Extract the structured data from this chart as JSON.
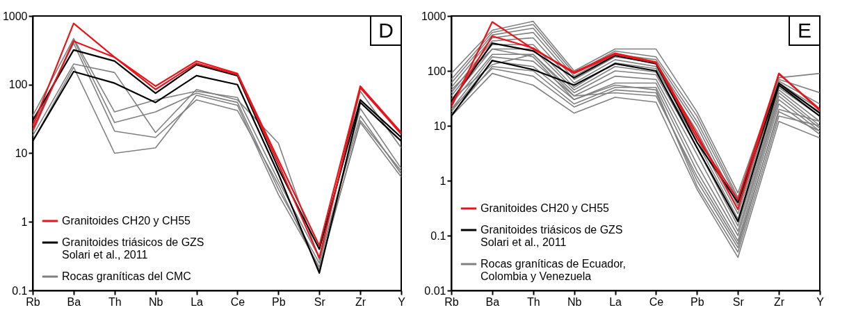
{
  "chart_data": [
    {
      "type": "line",
      "categories": [
        "Rb",
        "Ba",
        "Th",
        "Nb",
        "La",
        "Ce",
        "Pb",
        "Sr",
        "Zr",
        "Y"
      ],
      "log": "y",
      "ylim": [
        0.1,
        1000
      ],
      "yticks": [
        0.1,
        1,
        10,
        100,
        1000
      ],
      "grid": false,
      "legend": "bottom left",
      "annotations": [
        "D"
      ],
      "series": [
        {
          "name": "Granitoides CH20 y CH55",
          "color": "#e8141b",
          "values": [
            25,
            780,
            250,
            95,
            220,
            145,
            8,
            0.45,
            95,
            20
          ]
        },
        {
          "color": "#e8141b",
          "values": [
            22,
            430,
            250,
            85,
            205,
            140,
            7,
            0.3,
            90,
            19
          ]
        },
        {
          "name": "Granitoides triásicos de GZS\nSolari et al., 2011",
          "color": "#000000",
          "values": [
            30,
            320,
            220,
            75,
            195,
            135,
            6,
            0.4,
            60,
            17
          ]
        },
        {
          "color": "#000000",
          "values": [
            15,
            155,
            105,
            55,
            135,
            100,
            5,
            0.18,
            55,
            15
          ]
        },
        {
          "name": "Rocas graníticas del CMC",
          "color": "#808080",
          "values": [
            35,
            470,
            40,
            60,
            80,
            65,
            4,
            0.3,
            80,
            12
          ]
        },
        {
          "color": "#808080",
          "values": [
            20,
            450,
            28,
            40,
            75,
            55,
            3,
            0.25,
            45,
            6
          ]
        },
        {
          "color": "#808080",
          "values": [
            18,
            200,
            150,
            20,
            85,
            60,
            14,
            0.28,
            35,
            5
          ]
        },
        {
          "color": "#808080",
          "values": [
            15,
            180,
            10,
            12,
            70,
            50,
            2.5,
            0.22,
            28,
            4.5
          ]
        },
        {
          "color": "#808080",
          "values": [
            25,
            400,
            21,
            17,
            60,
            42,
            3.5,
            0.2,
            30,
            5.5
          ]
        }
      ]
    },
    {
      "type": "line",
      "categories": [
        "Rb",
        "Ba",
        "Th",
        "Nb",
        "La",
        "Ce",
        "Pb",
        "Sr",
        "Zr",
        "Y"
      ],
      "log": "y",
      "ylim": [
        0.01,
        1000
      ],
      "yticks": [
        0.01,
        0.1,
        1,
        10,
        100,
        1000
      ],
      "grid": false,
      "legend": "bottom left",
      "annotations": [
        "E"
      ],
      "series": [
        {
          "name": "Granitoides CH20 y CH55",
          "color": "#e8141b",
          "values": [
            22,
            780,
            250,
            95,
            210,
            145,
            7,
            0.3,
            90,
            19
          ]
        },
        {
          "color": "#e8141b",
          "values": [
            25,
            430,
            260,
            90,
            200,
            140,
            6,
            0.45,
            88,
            20
          ]
        },
        {
          "name": "Granitoides triásicos de GZS\nSolari et al., 2011",
          "color": "#000000",
          "values": [
            28,
            320,
            230,
            75,
            190,
            135,
            5,
            0.4,
            60,
            17
          ]
        },
        {
          "color": "#000000",
          "values": [
            15,
            155,
            105,
            55,
            135,
            100,
            4,
            0.18,
            55,
            15
          ]
        },
        {
          "name": "Rocas graníticas de Ecuador,\nColombia y Venezuela",
          "color": "#808080",
          "values": [
            90,
            550,
            800,
            100,
            250,
            250,
            18,
            0.6,
            75,
            90
          ]
        },
        {
          "color": "#808080",
          "values": [
            15,
            90,
            55,
            17,
            33,
            27,
            0.7,
            0.04,
            12,
            6
          ]
        },
        {
          "color": "#808080",
          "values": [
            70,
            500,
            700,
            90,
            230,
            180,
            15,
            0.5,
            70,
            40
          ]
        },
        {
          "color": "#808080",
          "values": [
            60,
            450,
            600,
            80,
            200,
            160,
            12,
            0.45,
            65,
            25
          ]
        },
        {
          "color": "#808080",
          "values": [
            50,
            400,
            500,
            70,
            180,
            140,
            10,
            0.35,
            60,
            20
          ]
        },
        {
          "color": "#808080",
          "values": [
            40,
            350,
            400,
            60,
            160,
            120,
            8,
            0.3,
            55,
            18
          ]
        },
        {
          "color": "#808080",
          "values": [
            35,
            300,
            300,
            50,
            140,
            110,
            6,
            0.25,
            50,
            15
          ]
        },
        {
          "color": "#808080",
          "values": [
            30,
            250,
            250,
            45,
            120,
            95,
            5,
            0.2,
            45,
            12
          ]
        },
        {
          "color": "#808080",
          "values": [
            25,
            200,
            200,
            40,
            100,
            85,
            4,
            0.15,
            40,
            10
          ]
        },
        {
          "color": "#808080",
          "values": [
            20,
            180,
            150,
            35,
            80,
            70,
            3,
            0.12,
            35,
            9
          ]
        },
        {
          "color": "#808080",
          "values": [
            18,
            150,
            120,
            30,
            60,
            60,
            2,
            0.1,
            30,
            8
          ]
        },
        {
          "color": "#808080",
          "values": [
            16,
            120,
            100,
            25,
            50,
            50,
            1.5,
            0.08,
            25,
            7
          ]
        },
        {
          "color": "#808080",
          "values": [
            20,
            110,
            80,
            22,
            45,
            40,
            1,
            0.06,
            20,
            12
          ]
        },
        {
          "color": "#808080",
          "values": [
            45,
            250,
            180,
            30,
            55,
            45,
            0.8,
            0.05,
            15,
            10
          ]
        },
        {
          "color": "#808080",
          "values": [
            30,
            130,
            200,
            35,
            40,
            35,
            1.2,
            0.07,
            18,
            8
          ]
        }
      ]
    }
  ]
}
